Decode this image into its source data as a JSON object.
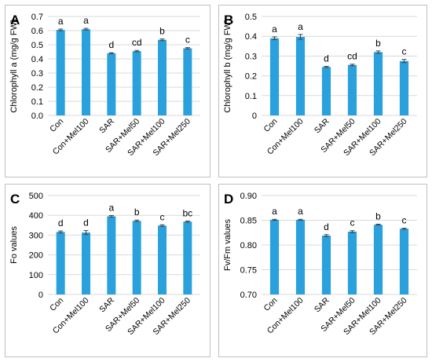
{
  "chart_data": [
    {
      "type": "bar",
      "panel_letter": "A",
      "ylabel": "Chlorophyll a (mg/g FW)",
      "xlabel": "",
      "categories": [
        "Con",
        "Con+Mel100",
        "SAR",
        "SAR+Mel50",
        "SAR+Mel100",
        "SAR+Mel250"
      ],
      "values": [
        0.605,
        0.61,
        0.44,
        0.455,
        0.535,
        0.475
      ],
      "errors": [
        0.006,
        0.006,
        0.004,
        0.005,
        0.006,
        0.005
      ],
      "letters": [
        "a",
        "a",
        "d",
        "cd",
        "b",
        "c"
      ],
      "ylim": [
        0,
        0.7
      ],
      "yticks": [
        "0.0",
        "0.1",
        "0.2",
        "0.3",
        "0.4",
        "0.5",
        "0.6",
        "0.7"
      ],
      "bar_color": "#2aa1dc",
      "grid": true
    },
    {
      "type": "bar",
      "panel_letter": "B",
      "ylabel": "Chlorophyll b (mg/g FW)",
      "xlabel": "",
      "categories": [
        "Con",
        "Con+Mel100",
        "SAR",
        "SAR+Mel50",
        "SAR+Mel100",
        "SAR+Mel250"
      ],
      "values": [
        0.39,
        0.397,
        0.245,
        0.255,
        0.32,
        0.275
      ],
      "errors": [
        0.007,
        0.012,
        0.003,
        0.004,
        0.006,
        0.008
      ],
      "letters": [
        "a",
        "a",
        "d",
        "cd",
        "b",
        "c"
      ],
      "ylim": [
        0,
        0.5
      ],
      "yticks": [
        "0",
        "0.1",
        "0.2",
        "0.3",
        "0.4",
        "0.5"
      ],
      "bar_color": "#2aa1dc",
      "grid": true
    },
    {
      "type": "bar",
      "panel_letter": "C",
      "ylabel": "Fo values",
      "xlabel": "",
      "categories": [
        "Con",
        "Con+Mel100",
        "SAR",
        "SAR+Mel50",
        "SAR+Mel100",
        "SAR+Mel250"
      ],
      "values": [
        316,
        313,
        395,
        372,
        348,
        368
      ],
      "errors": [
        5,
        10,
        4,
        4,
        4,
        3
      ],
      "letters": [
        "d",
        "d",
        "a",
        "b",
        "c",
        "bc"
      ],
      "ylim": [
        0,
        500
      ],
      "yticks": [
        "0",
        "100",
        "200",
        "300",
        "400",
        "500"
      ],
      "bar_color": "#2aa1dc",
      "grid": true
    },
    {
      "type": "bar",
      "panel_letter": "D",
      "ylabel": "Fv/Fm values",
      "xlabel": "",
      "categories": [
        "Con",
        "Con+Mel100",
        "SAR",
        "SAR+Mel50",
        "SAR+Mel100",
        "SAR+Mel250"
      ],
      "values": [
        0.851,
        0.851,
        0.819,
        0.827,
        0.841,
        0.833
      ],
      "errors": [
        0.001,
        0.001,
        0.002,
        0.002,
        0.001,
        0.001
      ],
      "letters": [
        "a",
        "a",
        "d",
        "c",
        "b",
        "c"
      ],
      "ylim": [
        0.7,
        0.9
      ],
      "yticks": [
        "0.70",
        "0.75",
        "0.80",
        "0.85",
        "0.90"
      ],
      "bar_color": "#2aa1dc",
      "grid": true
    }
  ]
}
